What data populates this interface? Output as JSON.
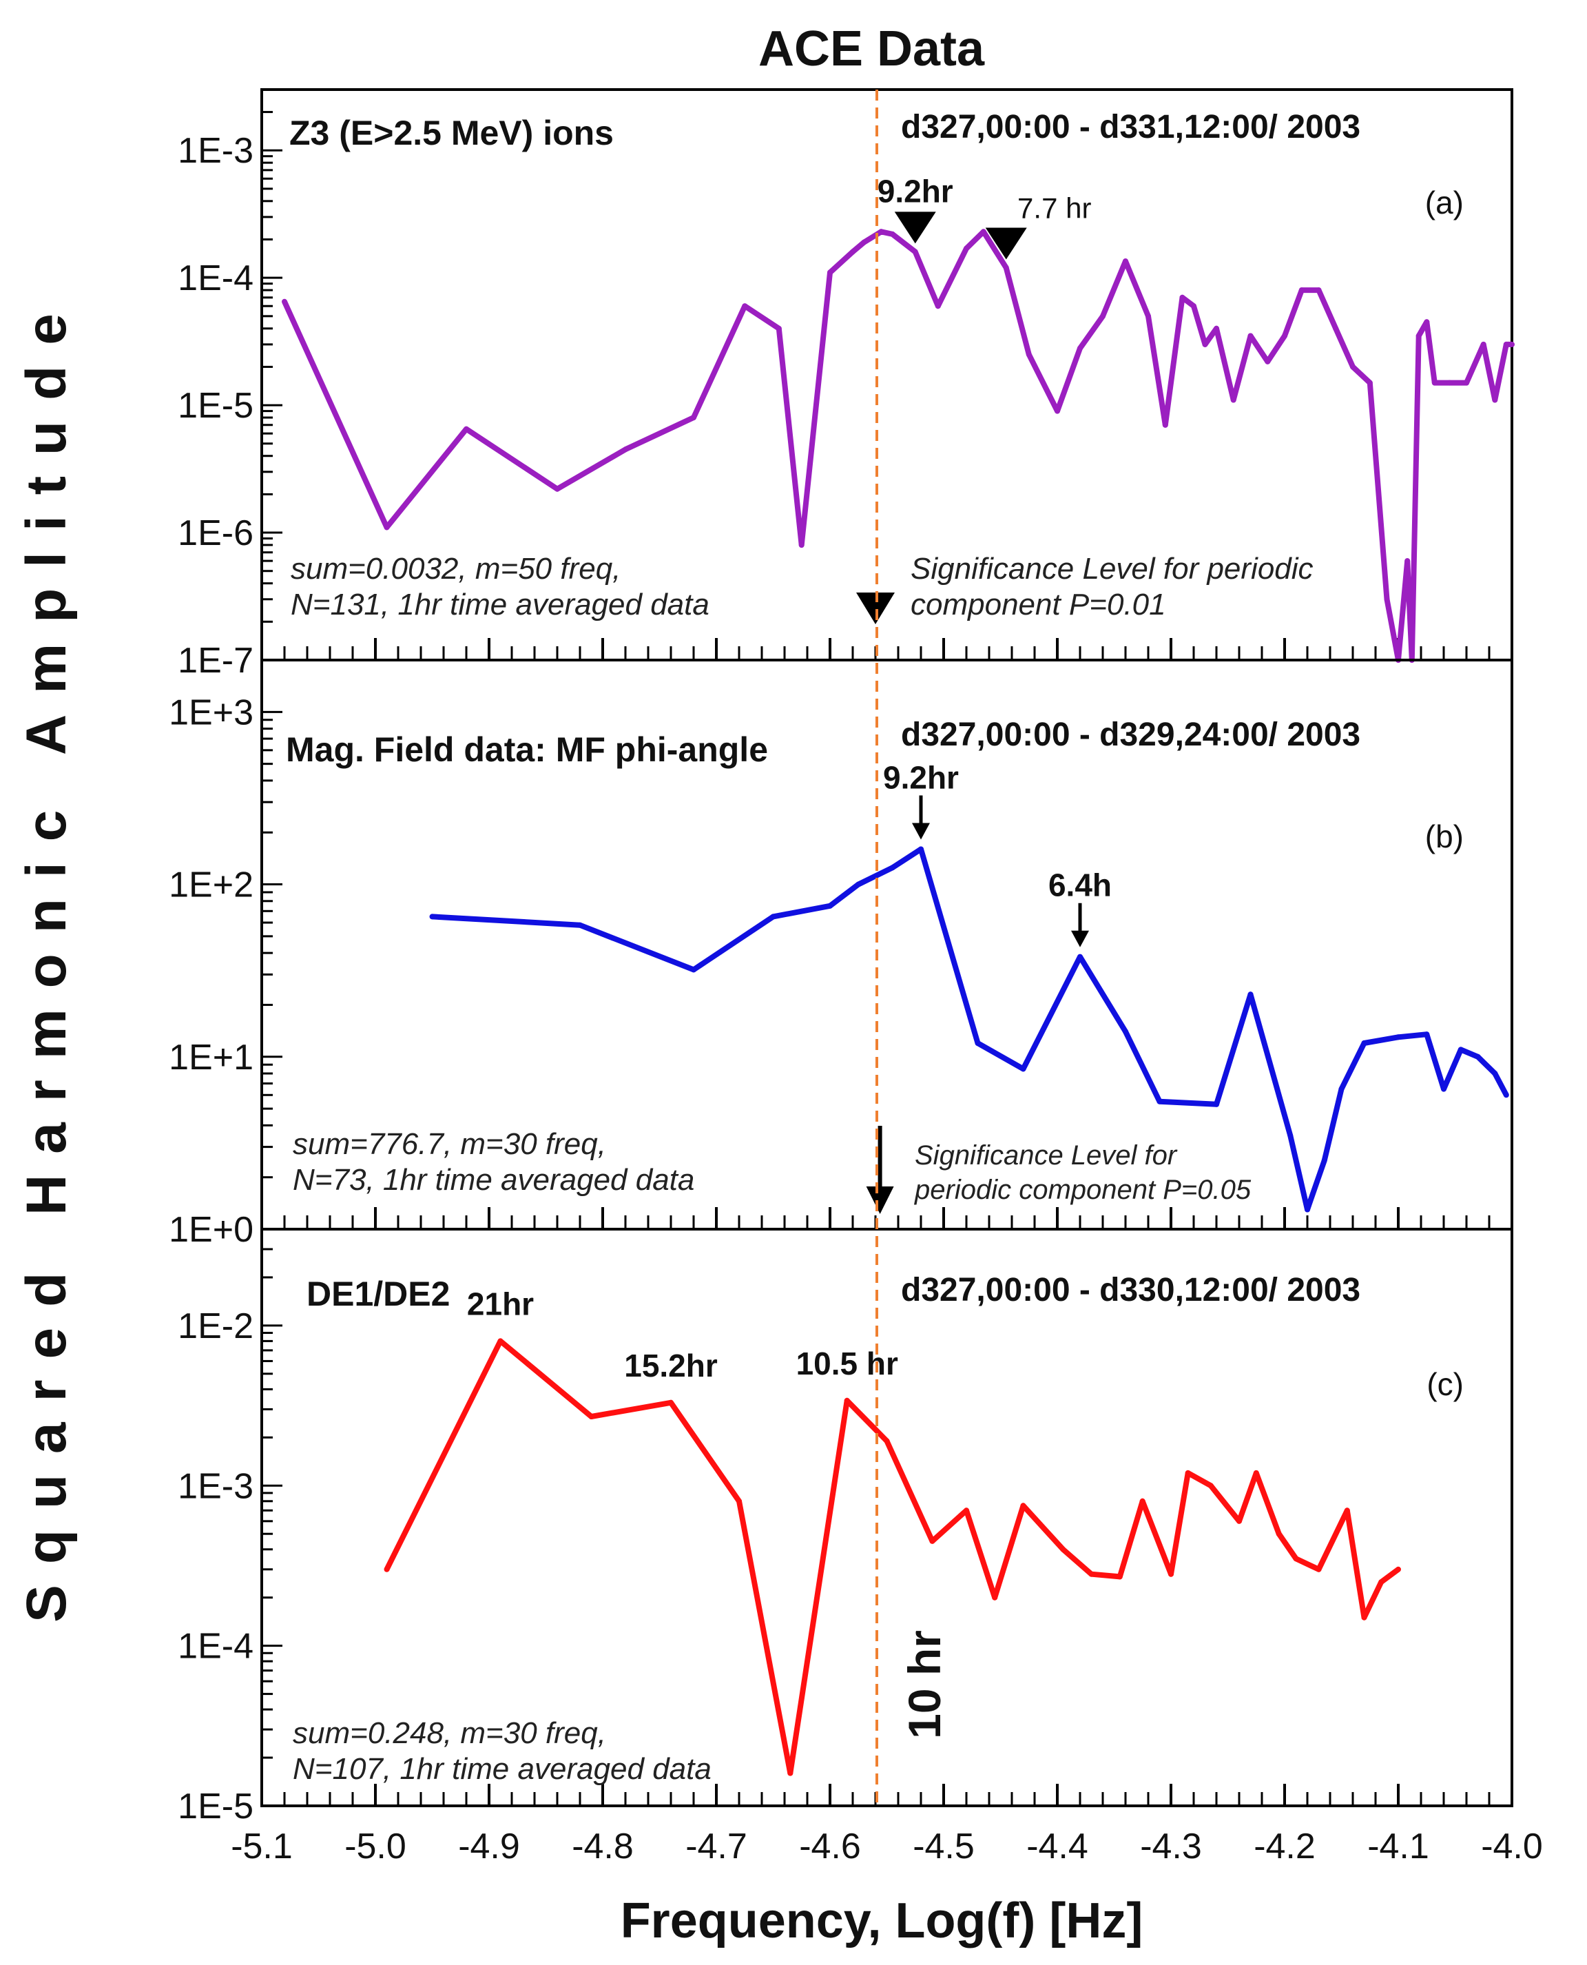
{
  "figure": {
    "title": "ACE Data",
    "ylabel": "Squared Harmonic Amplitude",
    "xlabel": "Frequency, Log(f) [Hz]",
    "marker_line_label": "10 hr",
    "x_ticks": [
      "-5.1",
      "-5.0",
      "-4.9",
      "-4.8",
      "-4.7",
      "-4.6",
      "-4.5",
      "-4.4",
      "-4.3",
      "-4.2",
      "-4.1",
      "-4.0"
    ],
    "colors": {
      "panel_a": "#9b1fc0",
      "panel_b": "#1010e0",
      "panel_c": "#ff1010",
      "reference_line": "#f08030",
      "frame": "#000000"
    }
  },
  "chart_data": [
    {
      "type": "line",
      "panel": "(a)",
      "title": "Z3 (E>2.5 MeV) ions",
      "date_range": "d327,00:00 - d331,12:00/ 2003",
      "stats_line1": "sum=0.0032, m=50 freq,",
      "stats_line2": "N=131, 1hr time averaged data",
      "significance_line1": "Significance Level for periodic",
      "significance_line2": "component P=0.01",
      "significance_x": -4.56,
      "ylim": [
        1e-07,
        0.003
      ],
      "yscale": "log",
      "y_ticks": [
        {
          "label": "1E-3",
          "value": 0.001
        },
        {
          "label": "1E-4",
          "value": 0.0001
        },
        {
          "label": "1E-5",
          "value": 1e-05
        },
        {
          "label": "1E-6",
          "value": 1e-06
        },
        {
          "label": "1E-7",
          "value": 1e-07
        }
      ],
      "xlim": [
        -5.1,
        -4.0
      ],
      "annotations": [
        {
          "label": "9.2hr",
          "x": -4.525,
          "bold": true
        },
        {
          "label": "7.7 hr",
          "x": -4.445,
          "bold": false
        }
      ],
      "x": [
        -5.08,
        -4.99,
        -4.92,
        -4.84,
        -4.78,
        -4.72,
        -4.675,
        -4.645,
        -4.625,
        -4.6,
        -4.58,
        -4.57,
        -4.555,
        -4.545,
        -4.525,
        -4.505,
        -4.48,
        -4.465,
        -4.445,
        -4.425,
        -4.4,
        -4.38,
        -4.36,
        -4.34,
        -4.32,
        -4.305,
        -4.29,
        -4.28,
        -4.27,
        -4.26,
        -4.245,
        -4.23,
        -4.215,
        -4.2,
        -4.185,
        -4.17,
        -4.155,
        -4.14,
        -4.125,
        -4.11,
        -4.1,
        -4.092,
        -4.088,
        -4.082,
        -4.075,
        -4.068,
        -4.055,
        -4.04,
        -4.025,
        -4.015,
        -4.005,
        -4.0
      ],
      "y": [
        6.5e-05,
        1.1e-06,
        6.5e-06,
        2.2e-06,
        4.5e-06,
        8e-06,
        6e-05,
        4e-05,
        8e-07,
        0.00011,
        0.00016,
        0.00019,
        0.00023,
        0.00022,
        0.00016,
        6e-05,
        0.00017,
        0.00023,
        0.00012,
        2.5e-05,
        9e-06,
        2.8e-05,
        5e-05,
        0.000135,
        5e-05,
        7e-06,
        7e-05,
        6e-05,
        3e-05,
        4e-05,
        1.1e-05,
        3.5e-05,
        2.2e-05,
        3.5e-05,
        8e-05,
        8e-05,
        4e-05,
        2e-05,
        1.5e-05,
        3e-07,
        1e-07,
        6e-07,
        1e-07,
        3.5e-05,
        4.5e-05,
        1.5e-05,
        1.5e-05,
        1.5e-05,
        3e-05,
        1.1e-05,
        3e-05,
        3e-05
      ]
    },
    {
      "type": "line",
      "panel": "(b)",
      "title": "Mag. Field data: MF phi-angle",
      "date_range": "d327,00:00 - d329,24:00/ 2003",
      "stats_line1": "sum=776.7, m=30 freq,",
      "stats_line2": "N=73, 1hr time averaged data",
      "significance_line1": "Significance Level for",
      "significance_line2": "periodic component P=0.05",
      "significance_x": -4.556,
      "ylim": [
        1,
        2000
      ],
      "yscale": "log",
      "y_ticks": [
        {
          "label": "1E+3",
          "value": 1000
        },
        {
          "label": "1E+2",
          "value": 100
        },
        {
          "label": "1E+1",
          "value": 10
        },
        {
          "label": "1E+0",
          "value": 1
        }
      ],
      "xlim": [
        -5.1,
        -4.0
      ],
      "annotations": [
        {
          "label": "9.2hr",
          "x": -4.52,
          "bold": true
        },
        {
          "label": "6.4h",
          "x": -4.38,
          "bold": true
        }
      ],
      "x": [
        -4.95,
        -4.82,
        -4.72,
        -4.65,
        -4.6,
        -4.575,
        -4.545,
        -4.52,
        -4.47,
        -4.43,
        -4.38,
        -4.34,
        -4.31,
        -4.26,
        -4.23,
        -4.195,
        -4.18,
        -4.165,
        -4.15,
        -4.13,
        -4.1,
        -4.075,
        -4.06,
        -4.045,
        -4.03,
        -4.015,
        -4.005
      ],
      "y": [
        65,
        58,
        32,
        65,
        75,
        100,
        125,
        160,
        12,
        8.5,
        38,
        14,
        5.5,
        5.3,
        23,
        3.5,
        1.3,
        2.5,
        6.5,
        12,
        13,
        13.5,
        6.5,
        11,
        10,
        8,
        6
      ]
    },
    {
      "type": "line",
      "panel": "(c)",
      "title": "DE1/DE2",
      "date_range": "d327,00:00 - d330,12:00/ 2003",
      "stats_line1": "sum=0.248, m=30 freq,",
      "stats_line2": "N=107, 1hr time averaged data",
      "ylim": [
        1e-05,
        0.04
      ],
      "yscale": "log",
      "y_ticks": [
        {
          "label": "1E-2",
          "value": 0.01
        },
        {
          "label": "1E-3",
          "value": 0.001
        },
        {
          "label": "1E-4",
          "value": 0.0001
        },
        {
          "label": "1E-5",
          "value": 1e-05
        }
      ],
      "xlim": [
        -5.1,
        -4.0
      ],
      "annotations": [
        {
          "label": "21hr",
          "x": -4.89,
          "bold": true
        },
        {
          "label": "15.2hr",
          "x": -4.74,
          "bold": true
        },
        {
          "label": "10.5 hr",
          "x": -4.585,
          "bold": true
        }
      ],
      "x": [
        -4.99,
        -4.89,
        -4.81,
        -4.74,
        -4.68,
        -4.635,
        -4.585,
        -4.55,
        -4.51,
        -4.48,
        -4.455,
        -4.43,
        -4.395,
        -4.37,
        -4.345,
        -4.325,
        -4.3,
        -4.285,
        -4.265,
        -4.24,
        -4.225,
        -4.205,
        -4.19,
        -4.17,
        -4.145,
        -4.13,
        -4.115,
        -4.1
      ],
      "y": [
        0.0003,
        0.008,
        0.0027,
        0.0033,
        0.0008,
        1.6e-05,
        0.0034,
        0.0019,
        0.00045,
        0.0007,
        0.0002,
        0.00075,
        0.0004,
        0.00028,
        0.00027,
        0.0008,
        0.00028,
        0.0012,
        0.001,
        0.0006,
        0.0012,
        0.0005,
        0.00035,
        0.0003,
        0.0007,
        0.00015,
        0.00025,
        0.0003
      ]
    }
  ]
}
